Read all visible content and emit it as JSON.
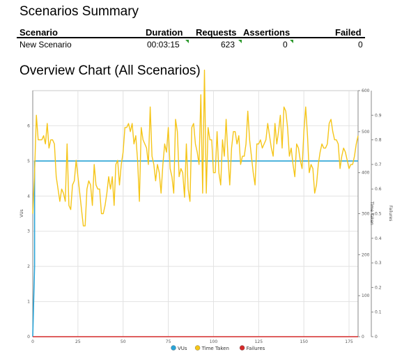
{
  "summary": {
    "title": "Scenarios Summary",
    "columns": [
      "Scenario",
      "Duration",
      "Requests",
      "Assertions",
      "Failed"
    ],
    "row": {
      "scenario": "New Scenario",
      "duration": "00:03:15",
      "requests": "623",
      "assertions": "0",
      "failed": "0"
    }
  },
  "overview": {
    "title": "Overview Chart (All Scenarios)"
  },
  "chart_data": {
    "type": "line",
    "xlim": [
      0,
      180
    ],
    "x_ticks": [
      "0",
      "25",
      "50",
      "75",
      "100",
      "125",
      "150",
      "175"
    ],
    "left_axis": {
      "label": "VUs",
      "ylim": [
        0,
        7
      ],
      "ticks": [
        "0",
        "1",
        "2",
        "3",
        "4",
        "5",
        "6"
      ]
    },
    "right_axis_1": {
      "label": "Time Taken",
      "ylim": [
        0,
        600
      ],
      "ticks": [
        "0",
        "100",
        "200",
        "300",
        "400",
        "500",
        "600"
      ]
    },
    "right_axis_2": {
      "label": "Failures",
      "ylim": [
        0,
        1
      ],
      "ticks": [
        "0",
        "0.1",
        "0.2",
        "0.3",
        "0.4",
        "0.5",
        "0.6",
        "0.7",
        "0.8",
        "0.9"
      ]
    },
    "grid": true,
    "legend_position": "bottom",
    "series": [
      {
        "name": "VUs",
        "color": "#29a3d6",
        "axis": "left",
        "x": [
          0,
          1,
          1,
          180
        ],
        "y": [
          0,
          2,
          5,
          5
        ]
      },
      {
        "name": "Time Taken",
        "color": "#f5c518",
        "axis": "right_axis_1",
        "x": [
          0,
          1,
          2,
          3,
          4,
          5,
          6,
          7,
          8,
          9,
          10,
          11,
          12,
          13,
          14,
          15,
          16,
          17,
          18,
          19,
          20,
          21,
          22,
          23,
          24,
          25,
          26,
          27,
          28,
          29,
          30,
          31,
          32,
          33,
          34,
          35,
          36,
          37,
          38,
          39,
          40,
          41,
          42,
          43,
          44,
          45,
          46,
          47,
          48,
          49,
          50,
          51,
          52,
          53,
          54,
          55,
          56,
          57,
          58,
          59,
          60,
          61,
          62,
          63,
          64,
          65,
          66,
          67,
          68,
          69,
          70,
          71,
          72,
          73,
          74,
          75,
          76,
          77,
          78,
          79,
          80,
          81,
          82,
          83,
          84,
          85,
          86,
          87,
          88,
          89,
          90,
          91,
          92,
          93,
          94,
          95,
          96,
          97,
          98,
          99,
          100,
          101,
          102,
          103,
          104,
          105,
          106,
          107,
          108,
          109,
          110,
          111,
          112,
          113,
          114,
          115,
          116,
          117,
          118,
          119,
          120,
          121,
          122,
          123,
          124,
          125,
          126,
          127,
          128,
          129,
          130,
          131,
          132,
          133,
          134,
          135,
          136,
          137,
          138,
          139,
          140,
          141,
          142,
          143,
          144,
          145,
          146,
          147,
          148,
          149,
          150,
          151,
          152,
          153,
          154,
          155,
          156,
          157,
          158,
          159,
          160,
          161,
          162,
          163,
          164,
          165,
          166,
          167,
          168,
          169,
          170,
          171,
          172,
          173,
          174,
          175,
          176,
          177,
          178,
          179,
          180
        ],
        "y": [
          300,
          400,
          540,
          480,
          480,
          480,
          490,
          470,
          520,
          460,
          480,
          480,
          470,
          390,
          360,
          330,
          360,
          350,
          330,
          470,
          320,
          310,
          370,
          380,
          430,
          390,
          350,
          310,
          270,
          270,
          360,
          380,
          370,
          320,
          420,
          370,
          360,
          360,
          300,
          300,
          320,
          350,
          390,
          360,
          390,
          320,
          420,
          430,
          370,
          420,
          450,
          510,
          510,
          520,
          500,
          520,
          470,
          490,
          430,
          330,
          510,
          480,
          470,
          460,
          420,
          560,
          440,
          420,
          380,
          420,
          400,
          350,
          420,
          470,
          450,
          510,
          410,
          390,
          350,
          530,
          500,
          390,
          410,
          400,
          340,
          470,
          360,
          330,
          510,
          520,
          470,
          450,
          420,
          590,
          350,
          650,
          350,
          510,
          480,
          480,
          400,
          400,
          500,
          400,
          370,
          480,
          440,
          530,
          440,
          370,
          460,
          500,
          500,
          470,
          490,
          420,
          440,
          440,
          470,
          550,
          480,
          440,
          400,
          370,
          470,
          470,
          480,
          460,
          470,
          480,
          520,
          490,
          460,
          440,
          520,
          470,
          500,
          540,
          460,
          560,
          550,
          510,
          440,
          460,
          420,
          390,
          470,
          460,
          430,
          410,
          500,
          560,
          490,
          400,
          420,
          410,
          350,
          370,
          420,
          450,
          470,
          460,
          460,
          470,
          520,
          530,
          500,
          480,
          480,
          470,
          410,
          440,
          460,
          450,
          430,
          410,
          420,
          420,
          440,
          470,
          490
        ]
      },
      {
        "name": "Failures",
        "color": "#d42a2a",
        "axis": "right_axis_2",
        "x": [
          0,
          180
        ],
        "y": [
          0,
          0
        ]
      }
    ]
  }
}
